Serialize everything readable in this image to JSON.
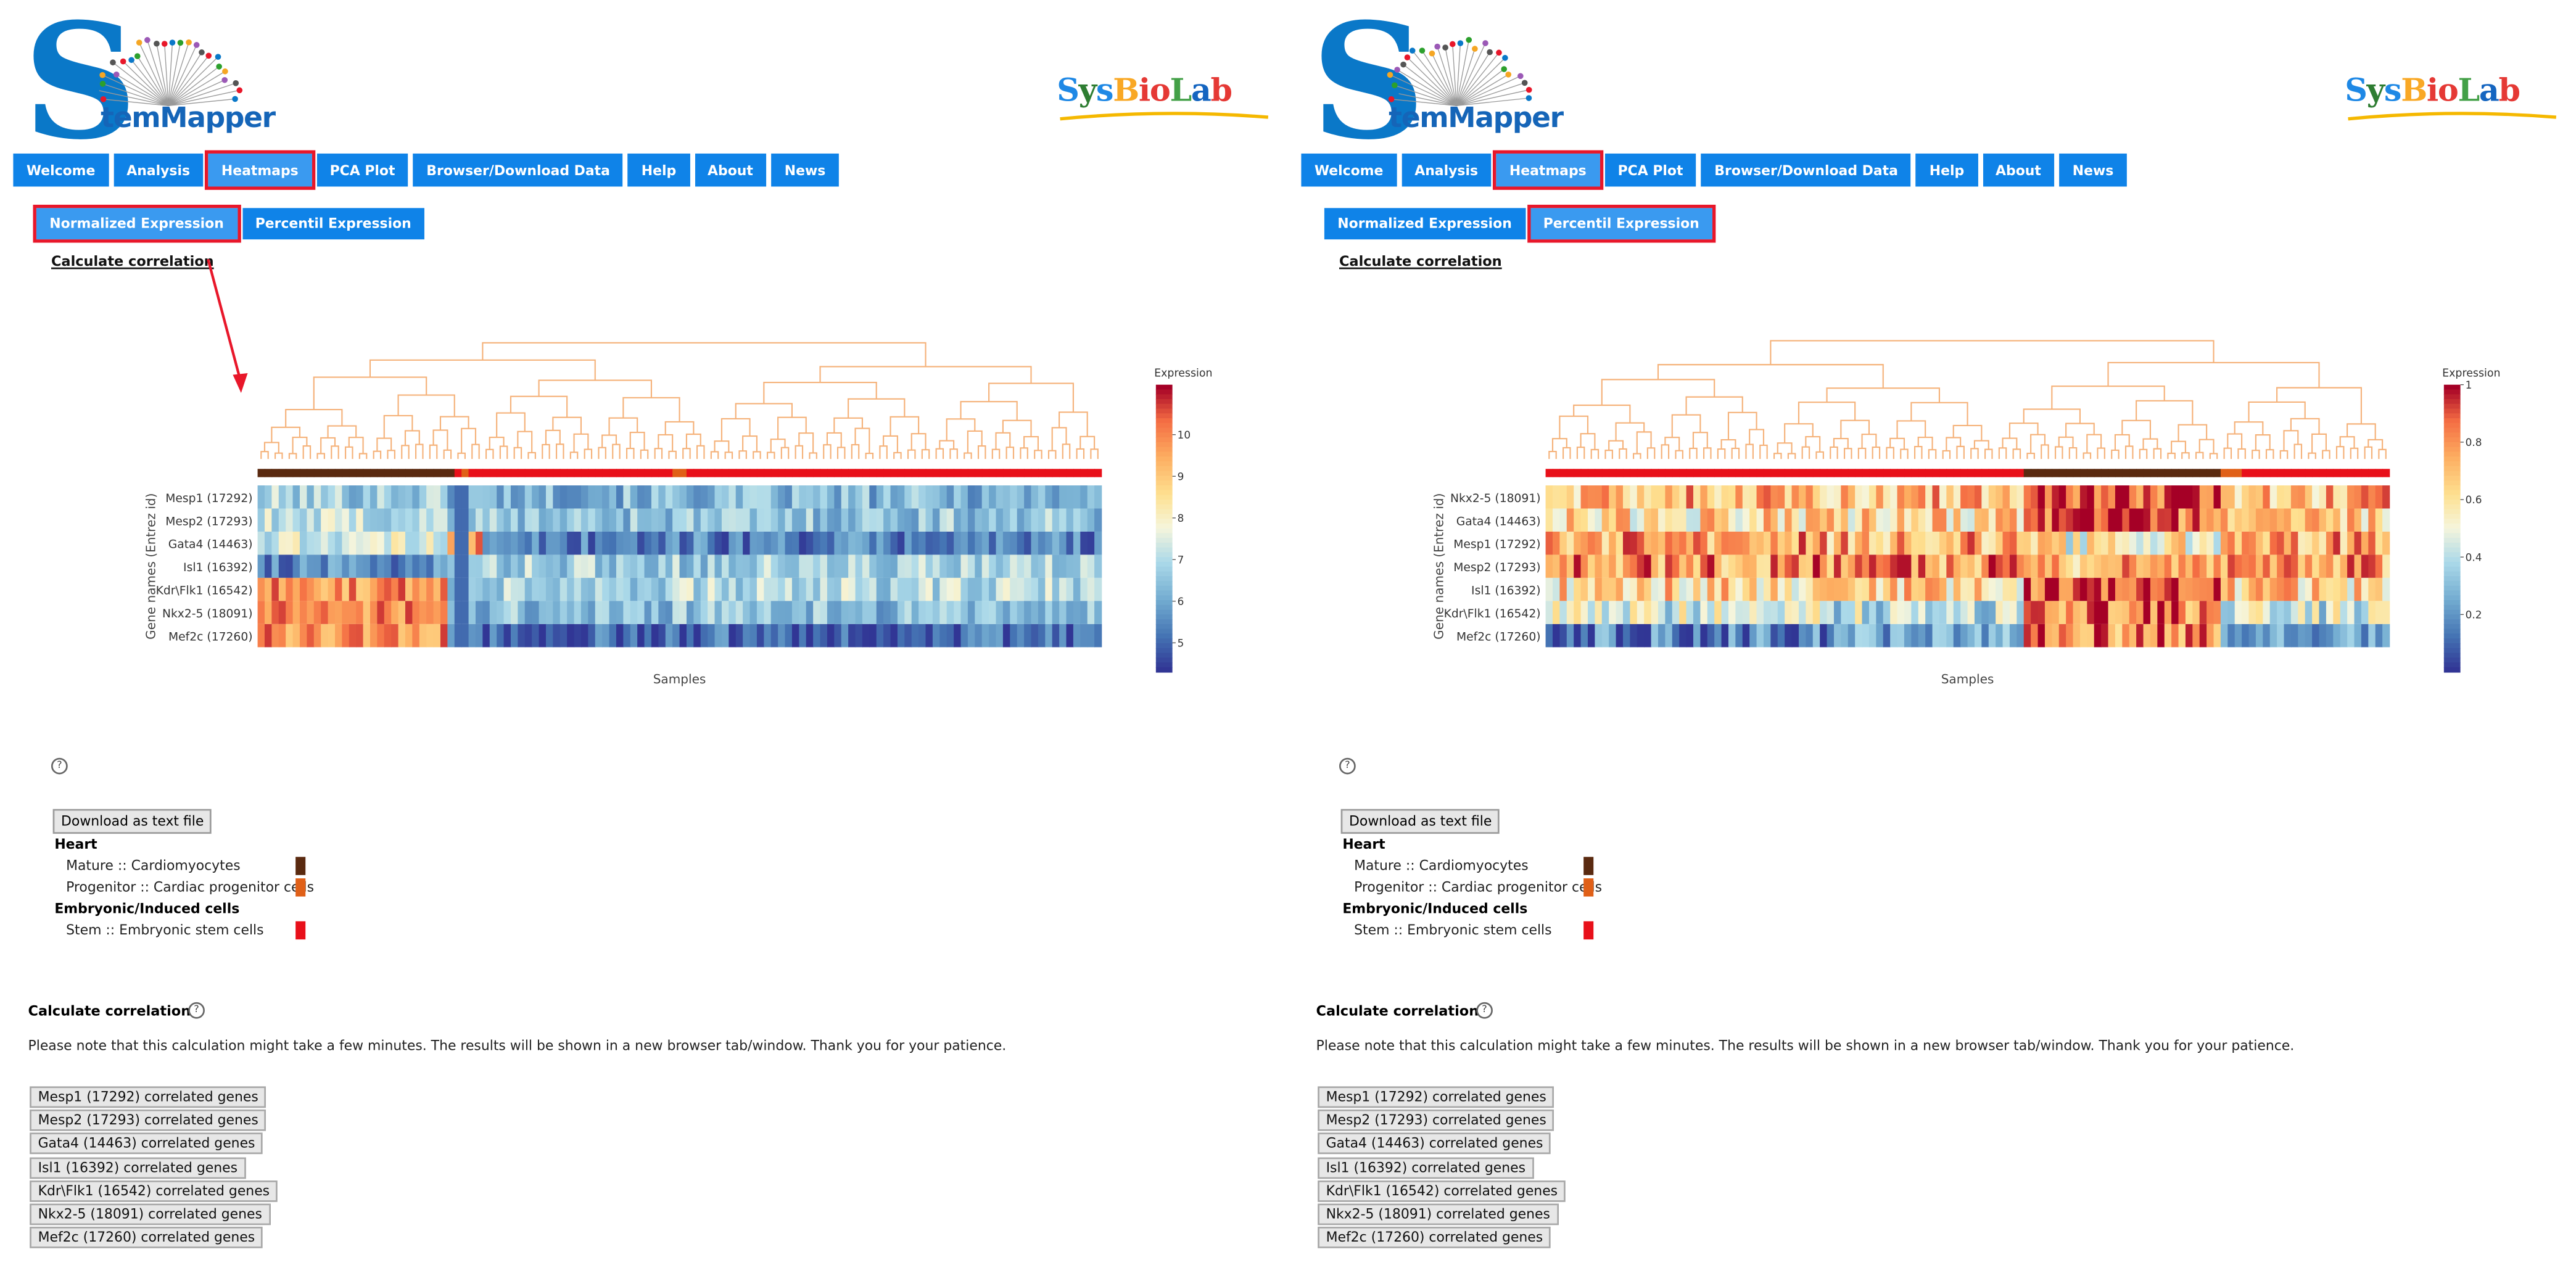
{
  "colors": {
    "nav_bg": "#0f83e8",
    "highlight_border": "#e8172a",
    "dendrogram": "#f5b27a",
    "annotation_arrow": "#e8172a",
    "legend_heart_mature": "#5a2a10",
    "legend_heart_progenitor": "#e06018",
    "legend_stem": "#e8101a"
  },
  "panels": [
    {
      "id": "left",
      "logo_word": "temMapper",
      "partner_logo": "SysBioLab",
      "nav": [
        "Welcome",
        "Analysis",
        "Heatmaps",
        "PCA Plot",
        "Browser/Download Data",
        "Help",
        "About",
        "News"
      ],
      "nav_selected": "Heatmaps",
      "subtabs": [
        "Normalized Expression",
        "Percentil Expression"
      ],
      "subtab_selected": "Normalized Expression",
      "calc_link": "Calculate correlation",
      "heatmap": {
        "y_axis_label": "Gene names (Entrez id)",
        "x_axis_label": "Samples",
        "colorbar_title": "Expression",
        "colorbar_ticks": [
          "10",
          "9",
          "8",
          "7",
          "6",
          "5"
        ],
        "colorbar_range": [
          4.3,
          11.2
        ],
        "genes": [
          "Mesp1 (17292)",
          "Mesp2 (17293)",
          "Gata4 (14463)",
          "Isl1 (16392)",
          "Kdr\\Flk1 (16542)",
          "Nkx2-5 (18091)",
          "Mef2c (17260)"
        ]
      },
      "help_icon_label": "?",
      "download_button": "Download as text file",
      "legend": [
        {
          "group": "Heart",
          "items": [
            {
              "label": "Mature :: Cardiomyocytes",
              "color": "#5a2a10"
            },
            {
              "label": "Progenitor :: Cardiac progenitor cells",
              "color": "#e06018"
            }
          ]
        },
        {
          "group": "Embryonic/Induced cells",
          "items": [
            {
              "label": "Stem :: Embryonic stem cells",
              "color": "#e8101a"
            }
          ]
        }
      ],
      "correlation": {
        "title": "Calculate correlation",
        "note": "Please note that this calculation might take a few minutes. The results will be shown in a new browser tab/window. Thank you for your patience.",
        "buttons": [
          "Mesp1 (17292) correlated genes",
          "Mesp2 (17293) correlated genes",
          "Gata4 (14463) correlated genes",
          "Isl1 (16392) correlated genes",
          "Kdr\\Flk1 (16542) correlated genes",
          "Nkx2-5 (18091) correlated genes",
          "Mef2c (17260) correlated genes"
        ]
      }
    },
    {
      "id": "right",
      "logo_word": "temMapper",
      "partner_logo": "SysBioLab",
      "nav": [
        "Welcome",
        "Analysis",
        "Heatmaps",
        "PCA Plot",
        "Browser/Download Data",
        "Help",
        "About",
        "News"
      ],
      "nav_selected": "Heatmaps",
      "subtabs": [
        "Normalized Expression",
        "Percentil Expression"
      ],
      "subtab_selected": "Percentil Expression",
      "calc_link": "Calculate correlation",
      "heatmap": {
        "y_axis_label": "Gene names (Entrez id)",
        "x_axis_label": "Samples",
        "colorbar_title": "Expression",
        "colorbar_ticks": [
          "1",
          "0.8",
          "0.6",
          "0.4",
          "0.2"
        ],
        "colorbar_range": [
          0.0,
          1.0
        ],
        "genes": [
          "Nkx2-5 (18091)",
          "Gata4 (14463)",
          "Mesp1 (17292)",
          "Mesp2 (17293)",
          "Isl1 (16392)",
          "Kdr\\Flk1 (16542)",
          "Mef2c (17260)"
        ]
      },
      "help_icon_label": "?",
      "download_button": "Download as text file",
      "legend": [
        {
          "group": "Heart",
          "items": [
            {
              "label": "Mature :: Cardiomyocytes",
              "color": "#5a2a10"
            },
            {
              "label": "Progenitor :: Cardiac progenitor cells",
              "color": "#e06018"
            }
          ]
        },
        {
          "group": "Embryonic/Induced cells",
          "items": [
            {
              "label": "Stem :: Embryonic stem cells",
              "color": "#e8101a"
            }
          ]
        }
      ],
      "correlation": {
        "title": "Calculate correlation",
        "note": "Please note that this calculation might take a few minutes. The results will be shown in a new browser tab/window. Thank you for your patience.",
        "buttons": [
          "Mesp1 (17292) correlated genes",
          "Mesp2 (17293) correlated genes",
          "Gata4 (14463) correlated genes",
          "Isl1 (16392) correlated genes",
          "Kdr\\Flk1 (16542) correlated genes",
          "Nkx2-5 (18091) correlated genes",
          "Mef2c (17260) correlated genes"
        ]
      }
    }
  ]
}
